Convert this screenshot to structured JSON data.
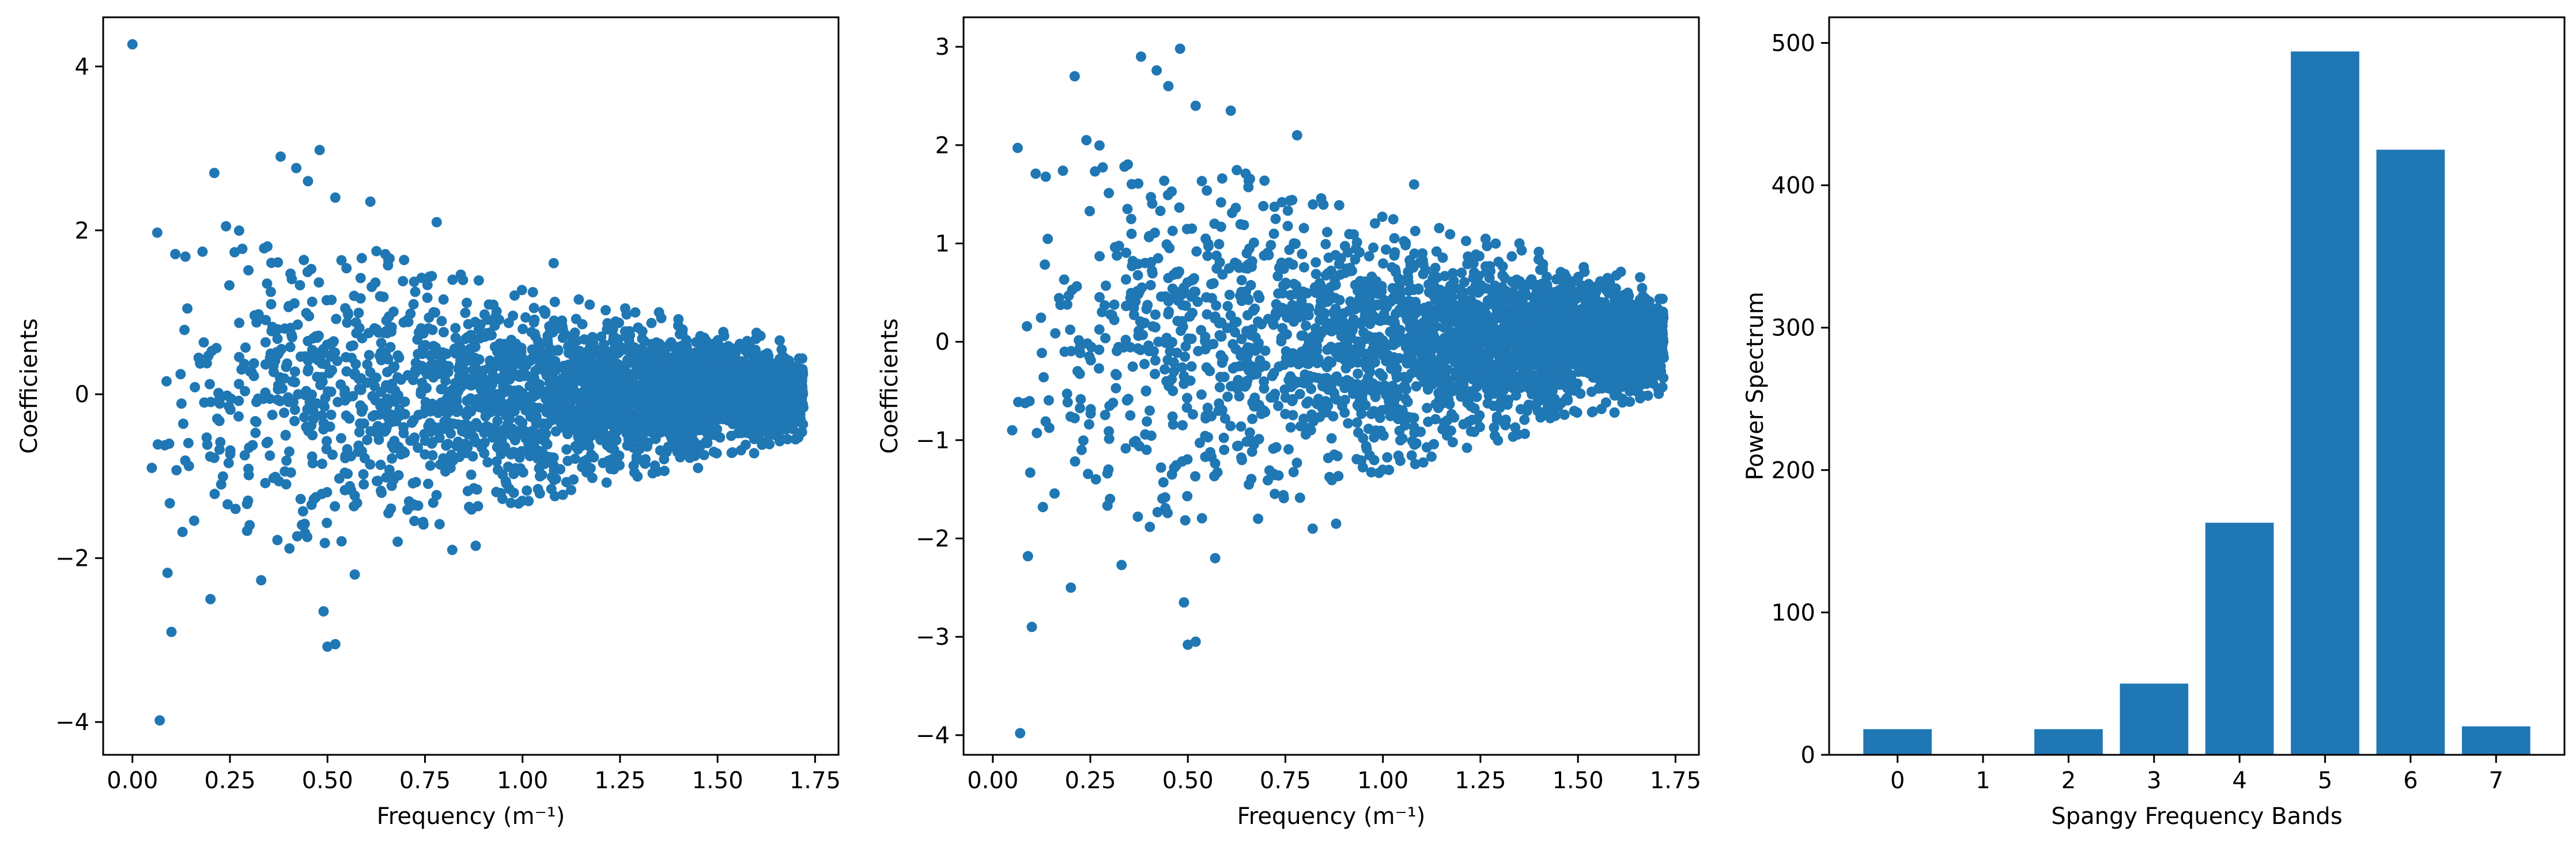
{
  "figure": {
    "background": "#ffffff",
    "mark_color": "#1f77b4"
  },
  "chart_data": [
    {
      "type": "scatter",
      "xlabel": "Frequency (m⁻¹)",
      "ylabel": "Coefficients",
      "xlim": [
        -0.075,
        1.81
      ],
      "ylim": [
        -4.4,
        4.6
      ],
      "xticks": [
        0.0,
        0.25,
        0.5,
        0.75,
        1.0,
        1.25,
        1.5,
        1.75
      ],
      "xtick_labels": [
        "0.00",
        "0.25",
        "0.50",
        "0.75",
        "1.00",
        "1.25",
        "1.50",
        "1.75"
      ],
      "yticks": [
        -4,
        -2,
        0,
        2,
        4
      ],
      "ytick_labels": [
        "−4",
        "−2",
        "0",
        "2",
        "4"
      ],
      "grid": false,
      "points": [
        [
          0.0,
          4.27
        ],
        [
          0.07,
          -3.98
        ],
        [
          0.09,
          -2.18
        ],
        [
          0.1,
          -2.9
        ],
        [
          0.11,
          1.71
        ],
        [
          0.2,
          -2.5
        ],
        [
          0.21,
          2.7
        ],
        [
          0.24,
          2.05
        ],
        [
          0.33,
          -2.27
        ],
        [
          0.38,
          2.9
        ],
        [
          0.42,
          2.76
        ],
        [
          0.45,
          2.6
        ],
        [
          0.48,
          2.98
        ],
        [
          0.49,
          -2.65
        ],
        [
          0.5,
          -3.08
        ],
        [
          0.52,
          -3.05
        ],
        [
          0.52,
          2.4
        ],
        [
          0.57,
          -2.2
        ],
        [
          0.61,
          2.35
        ],
        [
          0.68,
          -1.8
        ],
        [
          0.78,
          2.1
        ],
        [
          0.82,
          -1.9
        ],
        [
          0.88,
          -1.85
        ],
        [
          1.08,
          1.6
        ],
        [
          1.35,
          1.0
        ],
        [
          1.45,
          -0.9
        ],
        [
          1.6,
          0.75
        ],
        [
          1.7,
          -0.55
        ]
      ],
      "cloud": {
        "count": 2600,
        "x_range": [
          0.02,
          1.72
        ],
        "spread_start": 1.35,
        "spread_end": 0.32,
        "seed": 11
      }
    },
    {
      "type": "scatter",
      "xlabel": "Frequency (m⁻¹)",
      "ylabel": "Coefficients",
      "xlim": [
        -0.075,
        1.81
      ],
      "ylim": [
        -4.2,
        3.3
      ],
      "xticks": [
        0.0,
        0.25,
        0.5,
        0.75,
        1.0,
        1.25,
        1.5,
        1.75
      ],
      "xtick_labels": [
        "0.00",
        "0.25",
        "0.50",
        "0.75",
        "1.00",
        "1.25",
        "1.50",
        "1.75"
      ],
      "yticks": [
        -4,
        -3,
        -2,
        -1,
        0,
        1,
        2,
        3
      ],
      "ytick_labels": [
        "−4",
        "−3",
        "−2",
        "−1",
        "0",
        "1",
        "2",
        "3"
      ],
      "grid": false,
      "points": [
        [
          0.07,
          -3.98
        ],
        [
          0.09,
          -2.18
        ],
        [
          0.1,
          -2.9
        ],
        [
          0.11,
          1.71
        ],
        [
          0.2,
          -2.5
        ],
        [
          0.21,
          2.7
        ],
        [
          0.24,
          2.05
        ],
        [
          0.33,
          -2.27
        ],
        [
          0.38,
          2.9
        ],
        [
          0.42,
          2.76
        ],
        [
          0.45,
          2.6
        ],
        [
          0.48,
          2.98
        ],
        [
          0.49,
          -2.65
        ],
        [
          0.5,
          -3.08
        ],
        [
          0.52,
          -3.05
        ],
        [
          0.52,
          2.4
        ],
        [
          0.57,
          -2.2
        ],
        [
          0.61,
          2.35
        ],
        [
          0.68,
          -1.8
        ],
        [
          0.78,
          2.1
        ],
        [
          0.82,
          -1.9
        ],
        [
          0.88,
          -1.85
        ],
        [
          1.08,
          1.6
        ],
        [
          1.35,
          1.0
        ]
      ],
      "cloud": {
        "count": 2600,
        "x_range": [
          0.02,
          1.72
        ],
        "spread_start": 1.35,
        "spread_end": 0.32,
        "seed": 11
      }
    },
    {
      "type": "bar",
      "xlabel": "Spangy Frequency Bands",
      "ylabel": "Power Spectrum",
      "categories": [
        "0",
        "1",
        "2",
        "3",
        "4",
        "5",
        "6",
        "7"
      ],
      "values": [
        18,
        0,
        18,
        50,
        163,
        494,
        425,
        20
      ],
      "ylim": [
        0,
        518
      ],
      "yticks": [
        0,
        100,
        200,
        300,
        400,
        500
      ],
      "ytick_labels": [
        "0",
        "100",
        "200",
        "300",
        "400",
        "500"
      ],
      "grid": false
    }
  ]
}
